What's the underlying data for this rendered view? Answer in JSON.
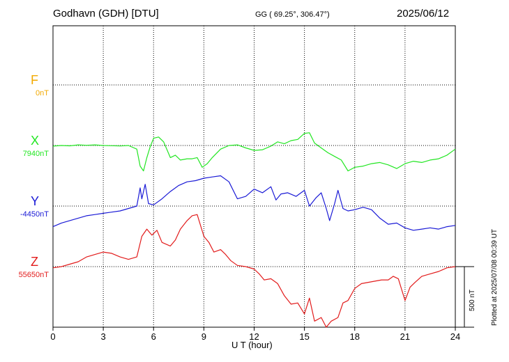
{
  "header": {
    "station": "Godhavn (GDH)  [DTU]",
    "coords": "GG ( 69.25°, 306.47°)",
    "date": "2025/06/12"
  },
  "footer_note": "Plotted at 2025/07/08 00:39 UT",
  "scale_bar_label": "500 nT",
  "colors": {
    "F": "#f2a900",
    "X": "#22e622",
    "Y": "#1a1ad6",
    "Z": "#e21b1b",
    "grid": "#000000"
  },
  "chart_data": {
    "type": "line",
    "xlabel": "U T (hour)",
    "xlim": [
      0,
      24
    ],
    "xticks": [
      0,
      3,
      6,
      9,
      12,
      15,
      18,
      21,
      24
    ],
    "grid": true,
    "units_per_row": 500,
    "scale_nT": 500,
    "series": [
      {
        "name": "F",
        "baseline_label": "0nT",
        "baseline": 0,
        "color": "#f2a900",
        "x": [],
        "y": []
      },
      {
        "name": "X",
        "baseline_label": "7940nT",
        "baseline": 7940,
        "color": "#22e622",
        "x": [
          0,
          0.5,
          1,
          1.5,
          2,
          2.5,
          3,
          3.5,
          4,
          4.5,
          5,
          5.2,
          5.4,
          5.6,
          5.8,
          6,
          6.3,
          6.6,
          7,
          7.3,
          7.6,
          8,
          8.3,
          8.6,
          8.9,
          9.2,
          9.5,
          10,
          10.5,
          11,
          11.5,
          12,
          12.5,
          13,
          13.4,
          13.8,
          14.2,
          14.6,
          15,
          15.3,
          15.6,
          16,
          16.4,
          16.8,
          17.2,
          17.6,
          18,
          18.5,
          19,
          19.5,
          20,
          20.5,
          21,
          21.5,
          22,
          22.5,
          23,
          23.5,
          24
        ],
        "y": [
          -5,
          0,
          -3,
          5,
          2,
          5,
          0,
          -2,
          -4,
          0,
          -30,
          -170,
          -210,
          -100,
          -10,
          60,
          70,
          30,
          -100,
          -80,
          -120,
          -110,
          -110,
          -100,
          -180,
          -150,
          -100,
          -30,
          0,
          5,
          -20,
          -40,
          -35,
          -5,
          30,
          15,
          40,
          50,
          100,
          105,
          20,
          -20,
          -60,
          -90,
          -120,
          -210,
          -180,
          -170,
          -150,
          -140,
          -160,
          -190,
          -150,
          -130,
          -140,
          -120,
          -110,
          -80,
          -30
        ]
      },
      {
        "name": "Y",
        "baseline_label": "-4450nT",
        "baseline": -4450,
        "color": "#1a1ad6",
        "x": [
          0,
          0.5,
          1,
          1.5,
          2,
          2.5,
          3,
          3.5,
          4,
          4.5,
          5,
          5.2,
          5.3,
          5.5,
          5.7,
          6,
          6.5,
          7,
          7.5,
          8,
          8.5,
          9,
          9.5,
          10,
          10.5,
          11,
          11.5,
          12,
          12.5,
          13,
          13.3,
          13.6,
          14,
          14.5,
          15,
          15.3,
          15.7,
          16,
          16.3,
          16.5,
          16.8,
          17,
          17.3,
          17.6,
          18,
          18.5,
          19,
          19.5,
          20,
          20.5,
          21,
          21.5,
          22,
          22.5,
          23,
          23.5,
          24
        ],
        "y": [
          -170,
          -140,
          -120,
          -100,
          -80,
          -70,
          -60,
          -50,
          -40,
          -20,
          0,
          150,
          60,
          180,
          20,
          10,
          60,
          120,
          170,
          200,
          210,
          230,
          240,
          250,
          200,
          60,
          80,
          140,
          110,
          160,
          50,
          100,
          110,
          80,
          130,
          0,
          70,
          110,
          -20,
          -120,
          20,
          130,
          -20,
          -40,
          -30,
          -10,
          -30,
          -100,
          -150,
          -140,
          -180,
          -200,
          -190,
          -180,
          -190,
          -170,
          -160
        ]
      },
      {
        "name": "Z",
        "baseline_label": "55650nT",
        "baseline": 55650,
        "color": "#e21b1b",
        "x": [
          0,
          0.5,
          1,
          1.5,
          2,
          2.5,
          3,
          3.5,
          4,
          4.5,
          5,
          5.3,
          5.6,
          5.9,
          6.2,
          6.5,
          7,
          7.3,
          7.6,
          8,
          8.3,
          8.6,
          9,
          9.3,
          9.6,
          10,
          10.3,
          10.6,
          11,
          11.5,
          12,
          12.3,
          12.6,
          13,
          13.4,
          13.8,
          14.2,
          14.6,
          15,
          15.3,
          15.6,
          16,
          16.3,
          16.6,
          17,
          17.3,
          17.6,
          18,
          18.4,
          18.8,
          19.2,
          19.6,
          20,
          20.3,
          20.6,
          21,
          21.3,
          21.6,
          22,
          22.5,
          23,
          23.5,
          24
        ],
        "y": [
          -10,
          0,
          20,
          40,
          80,
          100,
          120,
          110,
          80,
          60,
          80,
          250,
          310,
          260,
          300,
          200,
          170,
          220,
          310,
          380,
          420,
          430,
          250,
          200,
          120,
          140,
          100,
          50,
          10,
          0,
          -20,
          -60,
          -110,
          -100,
          -140,
          -240,
          -310,
          -300,
          -390,
          -260,
          -450,
          -420,
          -500,
          -450,
          -420,
          -300,
          -280,
          -180,
          -140,
          -130,
          -120,
          -110,
          -110,
          -80,
          -100,
          -280,
          -170,
          -130,
          -80,
          -60,
          -40,
          -10,
          0
        ]
      }
    ]
  }
}
